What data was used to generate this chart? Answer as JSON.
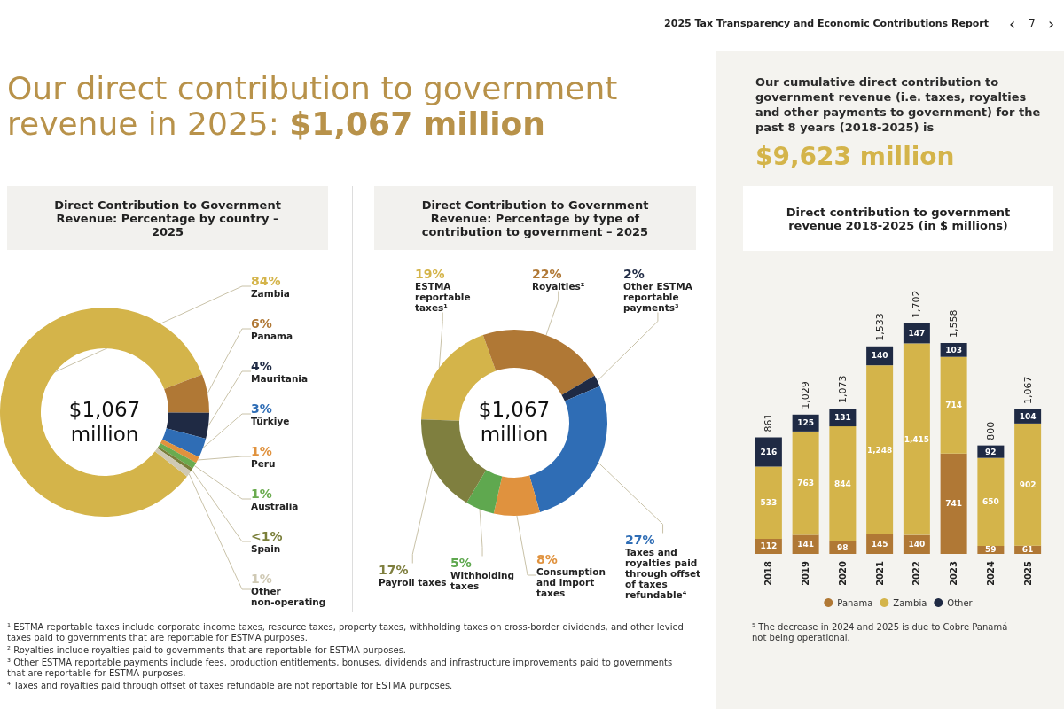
{
  "chart_data": [
    {
      "type": "donut",
      "title": "Direct Contribution to Government Revenue: Percentage by country – 2025",
      "categories": [
        "Zambia",
        "Panama",
        "Mauritania",
        "Türkiye",
        "Peru",
        "Australia",
        "Spain",
        "Other non-operating"
      ],
      "values": [
        84,
        6,
        4,
        3,
        1,
        1,
        0.5,
        1
      ],
      "value_labels": [
        "84%",
        "6%",
        "4%",
        "3%",
        "1%",
        "1%",
        "<1%",
        "1%"
      ],
      "colors": [
        "#d4b44a",
        "#b07835",
        "#1f2a44",
        "#2f6db5",
        "#e0923e",
        "#6aab4f",
        "#7a7f3a",
        "#cfc9b4"
      ],
      "annotations": [
        "2025 Tax Transparency and Economic Contributions Report",
        "‹",
        "7",
        "›",
        "Our direct contribution to government revenue in 2025:",
        "$1,067 million",
        "$1,067 million"
      ]
    },
    {
      "type": "donut",
      "title": "Direct Contribution to Government Revenue: Percentage by type of contribution to government – 2025",
      "categories": [
        "ESTMA reportable taxes¹",
        "Royalties²",
        "Other ESTMA reportable payments³",
        "Taxes and royalties paid through offset of taxes refundable⁴",
        "Consumption and import taxes",
        "Withholding taxes",
        "Payroll taxes"
      ],
      "values": [
        19,
        22,
        2,
        27,
        8,
        5,
        17
      ],
      "value_labels": [
        "19%",
        "22%",
        "2%",
        "27%",
        "8%",
        "5%",
        "17%"
      ],
      "colors": [
        "#d4b44a",
        "#b07835",
        "#1f2a44",
        "#2f6db5",
        "#e0923e",
        "#5fa84f",
        "#7f7f3f"
      ],
      "annotations": [
        "$1,067 million",
        "¹ ESTMA reportable taxes include corporate income taxes, resource taxes, property taxes, withholding taxes on cross-border dividends, and other levied taxes paid to governments that are reportable for ESTMA purposes.",
        "² Royalties include royalties paid to governments that are reportable for ESTMA purposes.",
        "³ Other ESTMA reportable payments include fees, production entitlements, bonuses, dividends and infrastructure improvements paid to governments that are reportable for ESTMA purposes.",
        "⁴ Taxes and royalties paid through offset of taxes refundable are not reportable for ESTMA purposes."
      ]
    },
    {
      "type": "bar",
      "stacked": true,
      "title": "Direct contribution to government revenue 2018-2025 (in $ millions)",
      "categories": [
        "2018",
        "2019",
        "2020",
        "2021",
        "2022",
        "2023",
        "2024",
        "2025"
      ],
      "series": [
        {
          "name": "Panama",
          "color": "#b07835",
          "values": [
            112,
            141,
            98,
            145,
            140,
            741,
            59,
            61
          ],
          "value_labels": [
            "112",
            "141",
            "98",
            "145",
            "140",
            "741",
            "59",
            "61"
          ]
        },
        {
          "name": "Zambia",
          "color": "#d4b44a",
          "values": [
            533,
            763,
            844,
            1248,
            1415,
            714,
            650,
            902
          ],
          "value_labels": [
            "533",
            "763",
            "844",
            "1,248",
            "1,415",
            "714",
            "650",
            "902"
          ]
        },
        {
          "name": "Other",
          "color": "#1f2a44",
          "values": [
            216,
            125,
            131,
            140,
            147,
            103,
            92,
            104
          ],
          "value_labels": [
            "216",
            "125",
            "131",
            "140",
            "147",
            "103",
            "92",
            "104"
          ]
        }
      ],
      "totals": [
        "861",
        "1,029",
        "1,073",
        "1,533",
        "1,702",
        "1,558",
        "800",
        "1,067"
      ],
      "legend": "bottom",
      "annotations": [
        "Our cumulative direct contribution to government revenue (i.e. taxes, royalties and other payments to government) for the past 8 years (2018-2025) is",
        "$9,623 million",
        "⁵ The decrease in 2024 and 2025 is due to Cobre Panamá not being operational."
      ]
    }
  ]
}
